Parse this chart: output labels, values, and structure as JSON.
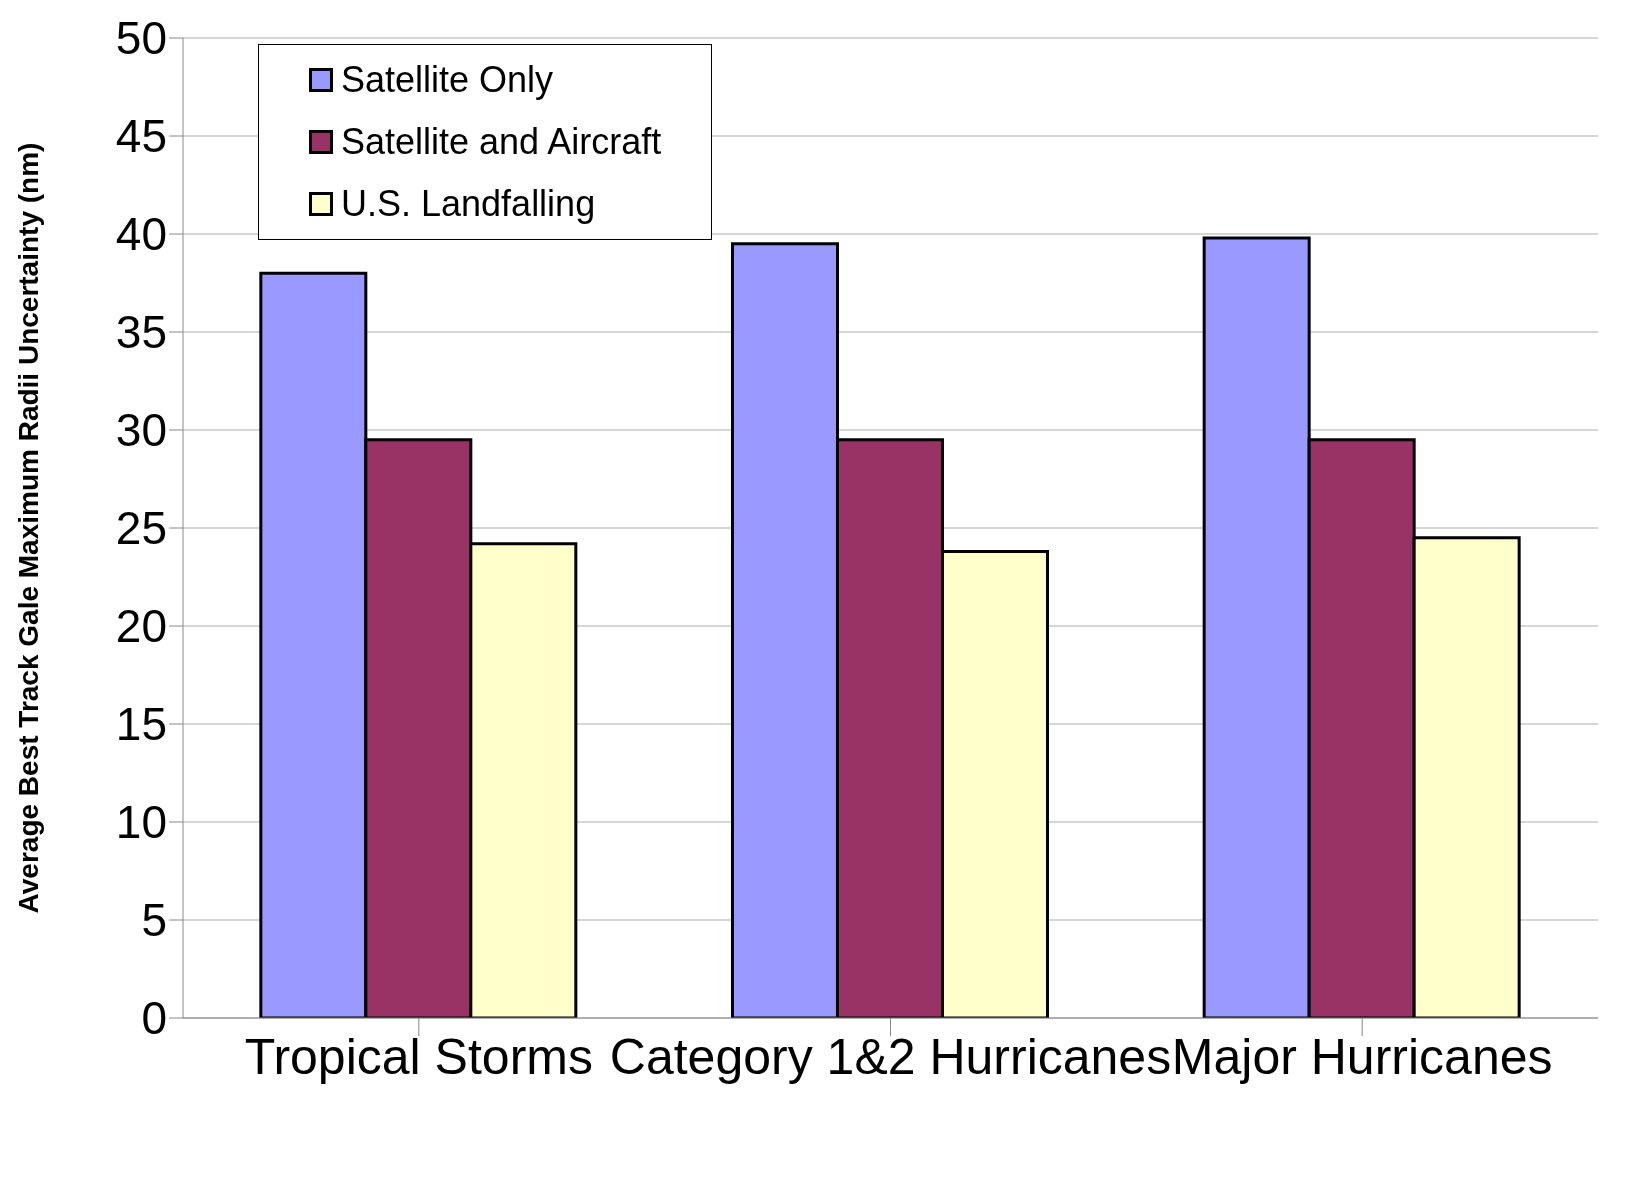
{
  "chart_data": {
    "type": "bar",
    "ylabel": "Average Best Track Gale Maximum Radii Uncertainty (nm)",
    "categories": [
      "Tropical Storms",
      "Category 1&2 Hurricanes",
      "Major Hurricanes"
    ],
    "series": [
      {
        "name": "Satellite Only",
        "color": "#9999ff",
        "values": [
          38,
          39.5,
          39.8
        ]
      },
      {
        "name": "Satellite and Aircraft",
        "color": "#993366",
        "values": [
          29.5,
          29.5,
          29.5
        ]
      },
      {
        "name": "U.S. Landfalling",
        "color": "#ffffcc",
        "values": [
          24.2,
          23.8,
          24.5
        ]
      }
    ],
    "ylim": [
      0,
      50
    ],
    "yticks": [
      0,
      5,
      10,
      15,
      20,
      25,
      30,
      35,
      40,
      45,
      50
    ],
    "grid": "y",
    "legend": "top left"
  }
}
